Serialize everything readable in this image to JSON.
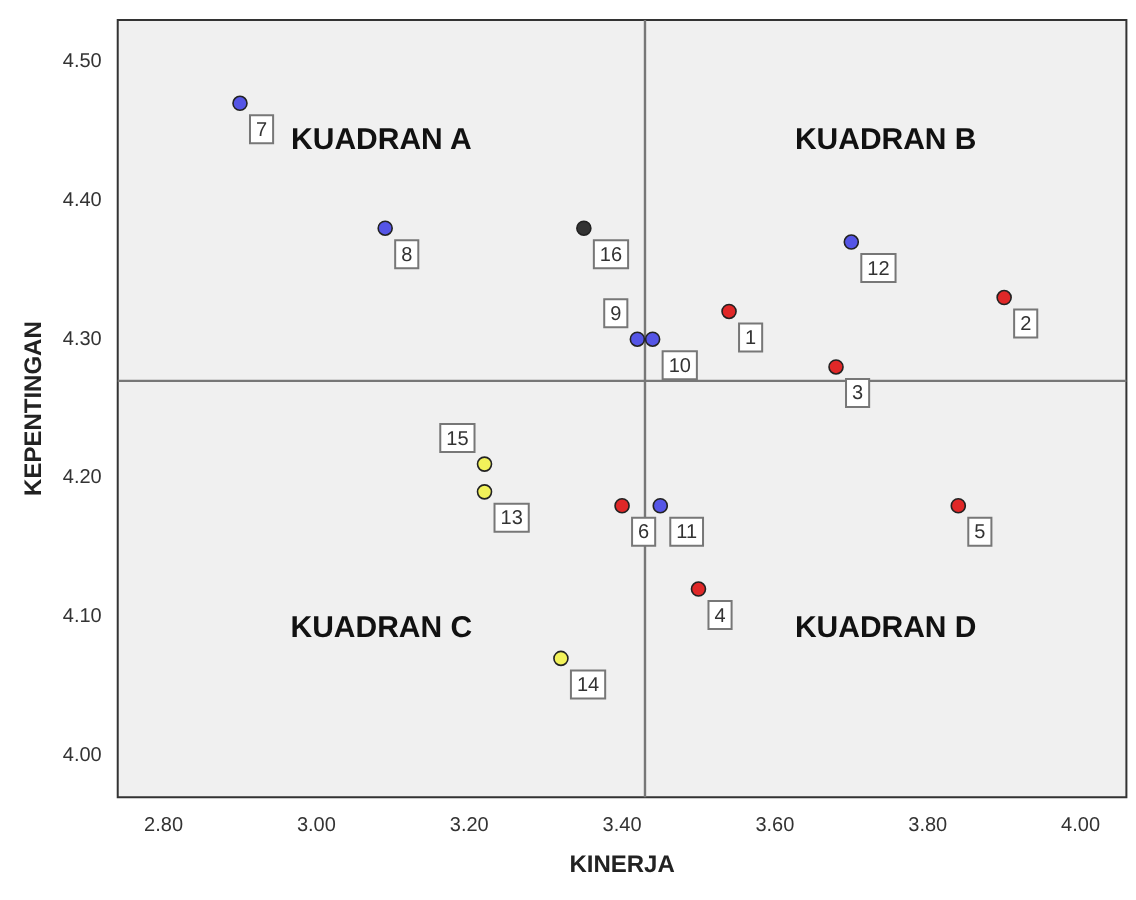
{
  "chart_data": {
    "type": "scatter",
    "xlabel": "KINERJA",
    "ylabel": "KEPENTINGAN",
    "xlim": [
      2.74,
      4.06
    ],
    "ylim": [
      3.97,
      4.53
    ],
    "xticks": [
      {
        "value": 2.8,
        "label": "2.80"
      },
      {
        "value": 3.0,
        "label": "3.00"
      },
      {
        "value": 3.2,
        "label": "3.20"
      },
      {
        "value": 3.4,
        "label": "3.40"
      },
      {
        "value": 3.6,
        "label": "3.60"
      },
      {
        "value": 3.8,
        "label": "3.80"
      },
      {
        "value": 4.0,
        "label": "4.00"
      }
    ],
    "yticks": [
      {
        "value": 4.0,
        "label": "4.00"
      },
      {
        "value": 4.1,
        "label": "4.10"
      },
      {
        "value": 4.2,
        "label": "4.20"
      },
      {
        "value": 4.3,
        "label": "4.30"
      },
      {
        "value": 4.4,
        "label": "4.40"
      },
      {
        "value": 4.5,
        "label": "4.50"
      }
    ],
    "grid": false,
    "legend": false,
    "marker": "circle",
    "series": [
      {
        "color": "#5555e6",
        "x": [
          2.9,
          3.09,
          3.42,
          3.44,
          3.45,
          3.7
        ],
        "values": [
          4.47,
          4.38,
          4.3,
          4.3,
          4.18,
          4.37
        ]
      },
      {
        "color": "#e02828",
        "x": [
          3.54,
          3.9,
          3.68,
          3.5,
          3.84,
          3.4
        ],
        "values": [
          4.32,
          4.33,
          4.28,
          4.12,
          4.18,
          4.18
        ]
      },
      {
        "color": "#f2f25a",
        "x": [
          3.22,
          3.32,
          3.22
        ],
        "values": [
          4.19,
          4.07,
          4.21
        ]
      },
      {
        "color": "#333333",
        "x": [
          3.35
        ],
        "values": [
          4.38
        ]
      }
    ],
    "ref_lines": [
      {
        "axis": "x",
        "value": 3.43,
        "color": "#777777"
      },
      {
        "axis": "y",
        "value": 4.27,
        "color": "#777777"
      }
    ],
    "annotations": [
      "KUADRAN A",
      "KUADRAN B",
      "KUADRAN C",
      "KUADRAN D",
      {
        "text": "1",
        "x": 3.54,
        "y": 4.32
      },
      {
        "text": "2",
        "x": 3.9,
        "y": 4.33
      },
      {
        "text": "3",
        "x": 3.68,
        "y": 4.28
      },
      {
        "text": "4",
        "x": 3.5,
        "y": 4.12
      },
      {
        "text": "5",
        "x": 3.84,
        "y": 4.18
      },
      {
        "text": "6",
        "x": 3.4,
        "y": 4.18
      },
      {
        "text": "7",
        "x": 2.9,
        "y": 4.47
      },
      {
        "text": "8",
        "x": 3.09,
        "y": 4.38
      },
      {
        "text": "10",
        "x": 3.44,
        "y": 4.3
      },
      {
        "text": "9",
        "x": 3.42,
        "y": 4.3
      },
      {
        "text": "11",
        "x": 3.45,
        "y": 4.18
      },
      {
        "text": "12",
        "x": 3.7,
        "y": 4.37
      },
      {
        "text": "13",
        "x": 3.22,
        "y": 4.19
      },
      {
        "text": "14",
        "x": 3.32,
        "y": 4.07
      },
      {
        "text": "15",
        "x": 3.22,
        "y": 4.21
      },
      {
        "text": "16",
        "x": 3.35,
        "y": 4.38
      }
    ]
  }
}
